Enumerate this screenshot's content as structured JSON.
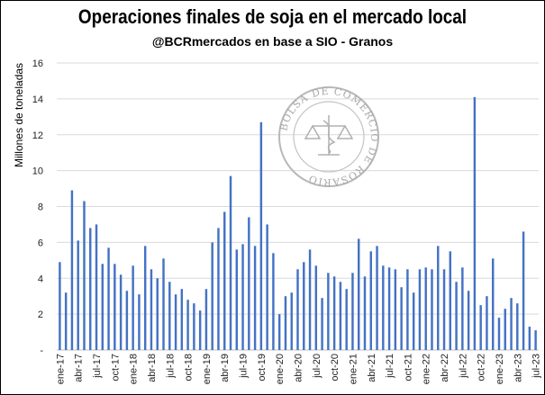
{
  "chart_data": {
    "type": "bar",
    "title": "Operaciones finales de soja en el mercado local",
    "subtitle": "@BCRmercados en base a SIO - Granos",
    "ylabel": "Millones de toneladas",
    "xlabel": "",
    "ylim": [
      0,
      16
    ],
    "yticks": [
      "-",
      "2",
      "4",
      "6",
      "8",
      "10",
      "12",
      "14",
      "16"
    ],
    "grid": true,
    "legend": "none",
    "bar_color": "#4472C4",
    "grid_color": "#d9d9d9",
    "watermark_text": "BOLSA DE COMERCIO DE ROSARIO",
    "categories": [
      "ene-17",
      "feb-17",
      "mar-17",
      "abr-17",
      "may-17",
      "jun-17",
      "jul-17",
      "ago-17",
      "sep-17",
      "oct-17",
      "nov-17",
      "dic-17",
      "ene-18",
      "feb-18",
      "mar-18",
      "abr-18",
      "may-18",
      "jun-18",
      "jul-18",
      "ago-18",
      "sep-18",
      "oct-18",
      "nov-18",
      "dic-18",
      "ene-19",
      "feb-19",
      "mar-19",
      "abr-19",
      "may-19",
      "jun-19",
      "jul-19",
      "ago-19",
      "sep-19",
      "oct-19",
      "nov-19",
      "dic-19",
      "ene-20",
      "feb-20",
      "mar-20",
      "abr-20",
      "may-20",
      "jun-20",
      "jul-20",
      "ago-20",
      "sep-20",
      "oct-20",
      "nov-20",
      "dic-20",
      "ene-21",
      "feb-21",
      "mar-21",
      "abr-21",
      "may-21",
      "jun-21",
      "jul-21",
      "ago-21",
      "sep-21",
      "oct-21",
      "nov-21",
      "dic-21",
      "ene-22",
      "feb-22",
      "mar-22",
      "abr-22",
      "may-22",
      "jun-22",
      "jul-22",
      "ago-22",
      "sep-22",
      "oct-22",
      "nov-22",
      "dic-22",
      "ene-23",
      "feb-23",
      "mar-23",
      "abr-23",
      "may-23",
      "jun-23",
      "jul-23"
    ],
    "values": [
      4.9,
      3.2,
      8.9,
      6.1,
      8.3,
      6.8,
      7.0,
      4.8,
      5.7,
      4.8,
      4.2,
      3.3,
      4.7,
      3.1,
      5.8,
      4.5,
      4.0,
      5.1,
      3.8,
      3.1,
      3.4,
      2.8,
      2.6,
      2.2,
      3.4,
      6.0,
      6.8,
      7.7,
      9.7,
      5.6,
      5.9,
      7.4,
      5.8,
      12.7,
      7.0,
      5.4,
      2.0,
      3.0,
      3.2,
      4.5,
      4.9,
      5.6,
      4.7,
      2.9,
      4.3,
      4.1,
      3.8,
      3.4,
      4.3,
      6.2,
      4.1,
      5.5,
      5.8,
      4.7,
      4.6,
      4.5,
      3.5,
      4.5,
      3.2,
      4.5,
      4.6,
      4.5,
      5.8,
      4.5,
      5.5,
      3.8,
      4.6,
      3.3,
      14.1,
      2.5,
      3.0,
      5.1,
      1.8,
      2.3,
      2.9,
      2.6,
      6.6,
      1.3,
      1.1
    ],
    "xtick_labels": [
      "ene-17",
      "abr-17",
      "jul-17",
      "oct-17",
      "ene-18",
      "abr-18",
      "jul-18",
      "oct-18",
      "ene-19",
      "abr-19",
      "jul-19",
      "oct-19",
      "ene-20",
      "abr-20",
      "jul-20",
      "oct-20",
      "ene-21",
      "abr-21",
      "jul-21",
      "oct-21",
      "ene-22",
      "abr-22",
      "jul-22",
      "oct-22",
      "ene-23",
      "abr-23",
      "jul-23"
    ]
  }
}
